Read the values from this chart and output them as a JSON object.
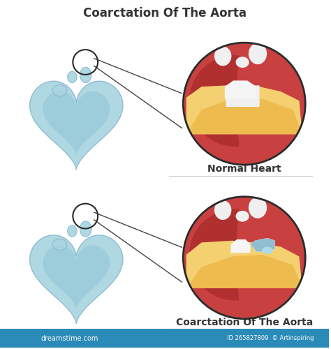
{
  "title": "Coarctation Of The Aorta",
  "title_fontsize": 12,
  "title_color": "#333333",
  "bg_color": "#ffffff",
  "label_normal": "Normal Heart",
  "label_condition": "Coarctation Of The Aorta",
  "label_fontsize": 9,
  "label_color": "#333333",
  "heart_fill": "#a8d4e0",
  "heart_edge": "#88b8cc",
  "heart_inner": "#7ab8cc",
  "circle_edge_color": "#2a2a2a",
  "red_main": "#c94040",
  "red_dark": "#b03030",
  "red_light": "#d96050",
  "yellow_main": "#f5d070",
  "yellow_dark": "#e8a830",
  "yellow_light": "#f8e090",
  "white_vessel": "#f5f5f5",
  "blue_vessel": "#90c0d0",
  "blue_vessel2": "#b0d8e8",
  "bottom_bar": "#2a8ab8",
  "watermark": "#bbbbbb"
}
